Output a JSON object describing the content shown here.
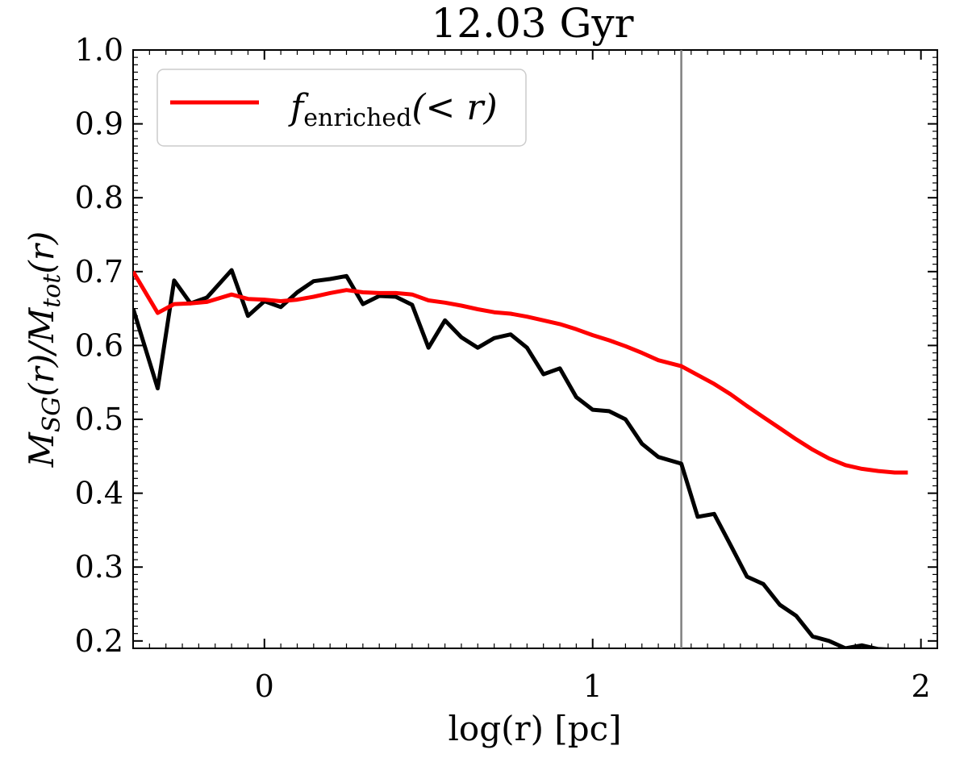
{
  "chart_data": {
    "type": "line",
    "title": "12.03 Gyr",
    "xlabel": "log(r) [pc]",
    "ylabel_parts": {
      "m1": "M",
      "sub1": "SG",
      "mid": "(r)/",
      "m2": "M",
      "sub2": "tot",
      "end": "(r)"
    },
    "xlim": [
      -0.4,
      2.05
    ],
    "ylim": [
      0.19,
      1.0
    ],
    "xticks": [
      0,
      1,
      2
    ],
    "xtick_labels": [
      "0",
      "1",
      "2"
    ],
    "yticks": [
      0.2,
      0.3,
      0.4,
      0.5,
      0.6,
      0.7,
      0.8,
      0.9,
      1.0
    ],
    "ytick_labels": [
      "0.2",
      "0.3",
      "0.4",
      "0.5",
      "0.6",
      "0.7",
      "0.8",
      "0.9",
      "1.0"
    ],
    "grid": false,
    "legend_position": "top-left",
    "vline_x": 1.27,
    "vline_color": "#808080",
    "series": [
      {
        "color": "#000000",
        "x": [
          -0.4,
          -0.325,
          -0.275,
          -0.225,
          -0.175,
          -0.1,
          -0.05,
          0.0,
          0.05,
          0.1,
          0.15,
          0.2,
          0.25,
          0.3,
          0.35,
          0.4,
          0.45,
          0.5,
          0.55,
          0.6,
          0.65,
          0.7,
          0.75,
          0.8,
          0.85,
          0.9,
          0.95,
          1.0,
          1.05,
          1.1,
          1.15,
          1.2,
          1.27,
          1.32,
          1.37,
          1.42,
          1.47,
          1.52,
          1.57,
          1.62,
          1.67,
          1.72,
          1.77,
          1.82,
          1.87,
          1.92
        ],
        "y": [
          0.65,
          0.542,
          0.688,
          0.657,
          0.665,
          0.702,
          0.64,
          0.66,
          0.652,
          0.672,
          0.687,
          0.69,
          0.694,
          0.656,
          0.667,
          0.666,
          0.655,
          0.597,
          0.634,
          0.611,
          0.597,
          0.61,
          0.615,
          0.597,
          0.561,
          0.569,
          0.53,
          0.513,
          0.511,
          0.5,
          0.467,
          0.449,
          0.44,
          0.368,
          0.372,
          0.33,
          0.287,
          0.277,
          0.249,
          0.234,
          0.206,
          0.2,
          0.19,
          0.194,
          0.189,
          0.188
        ]
      },
      {
        "name_parts": {
          "f": "f",
          "sub": "enriched",
          "rest": "(< r)"
        },
        "color": "#ff0000",
        "x": [
          -0.4,
          -0.325,
          -0.275,
          -0.225,
          -0.175,
          -0.1,
          -0.05,
          0.0,
          0.05,
          0.1,
          0.15,
          0.2,
          0.25,
          0.3,
          0.35,
          0.4,
          0.45,
          0.5,
          0.55,
          0.6,
          0.65,
          0.7,
          0.75,
          0.8,
          0.85,
          0.9,
          0.95,
          1.0,
          1.05,
          1.1,
          1.15,
          1.2,
          1.27,
          1.32,
          1.37,
          1.42,
          1.47,
          1.52,
          1.57,
          1.62,
          1.67,
          1.72,
          1.77,
          1.82,
          1.87,
          1.92,
          1.96
        ],
        "y": [
          0.7,
          0.644,
          0.656,
          0.657,
          0.659,
          0.669,
          0.663,
          0.662,
          0.66,
          0.662,
          0.666,
          0.671,
          0.675,
          0.672,
          0.671,
          0.671,
          0.669,
          0.661,
          0.658,
          0.654,
          0.649,
          0.645,
          0.643,
          0.639,
          0.634,
          0.629,
          0.622,
          0.614,
          0.607,
          0.599,
          0.59,
          0.58,
          0.572,
          0.56,
          0.548,
          0.534,
          0.518,
          0.503,
          0.488,
          0.473,
          0.459,
          0.447,
          0.438,
          0.433,
          0.43,
          0.428,
          0.428
        ]
      }
    ]
  }
}
